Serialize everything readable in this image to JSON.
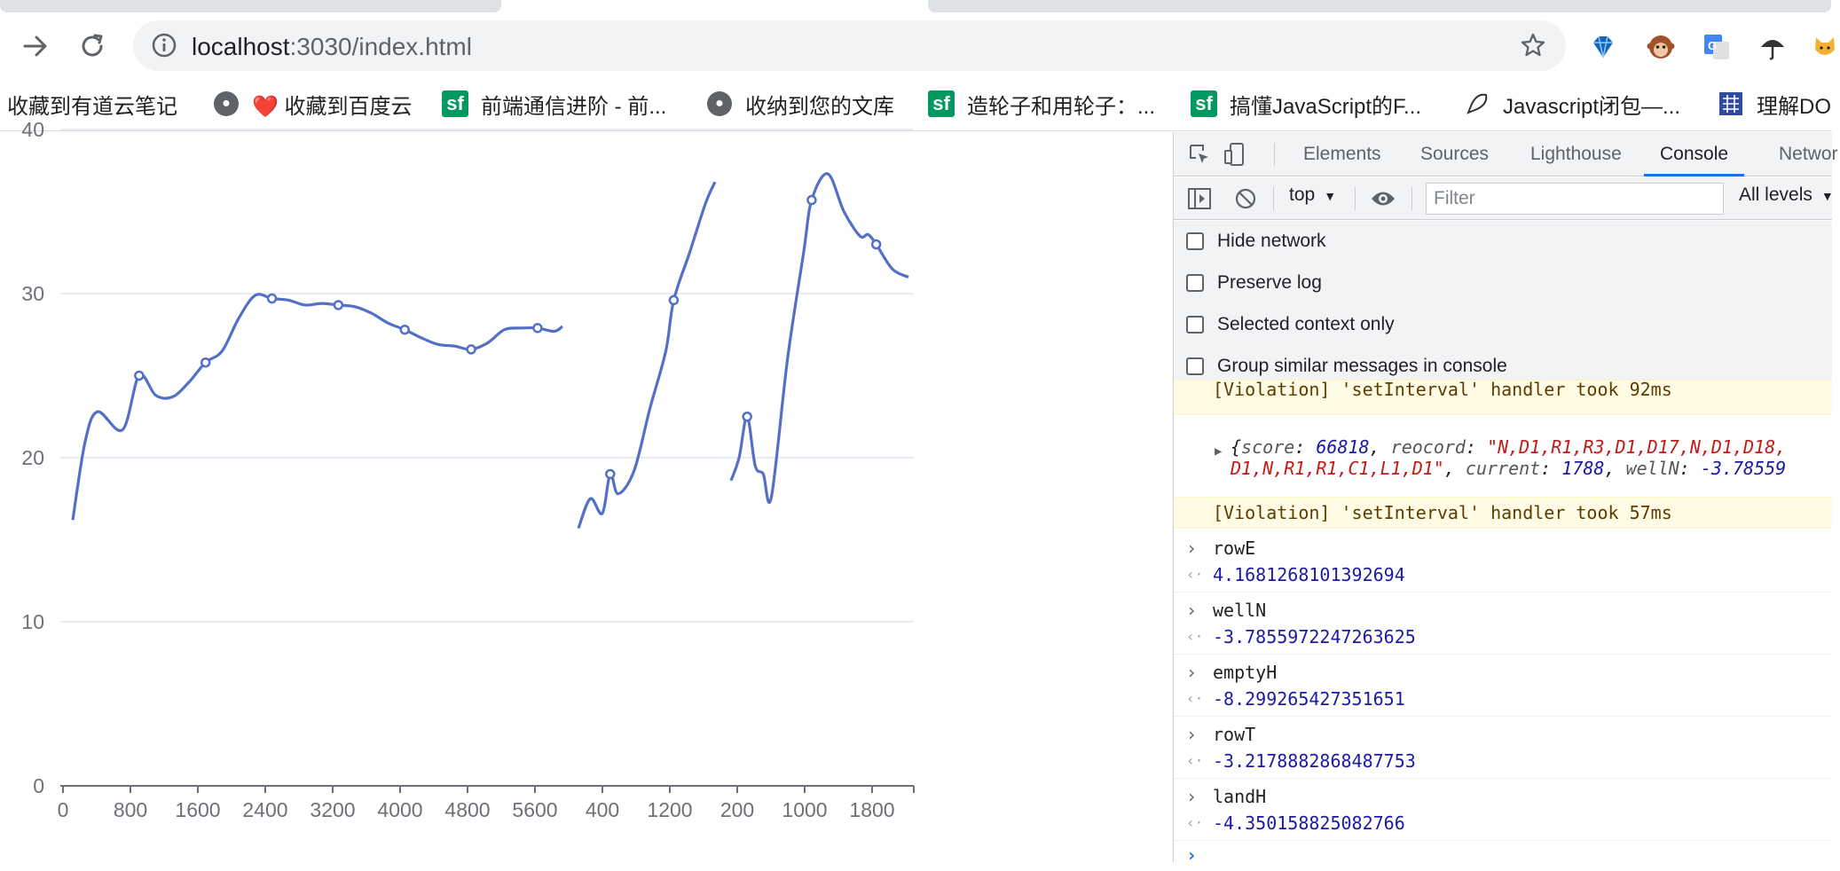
{
  "browser": {
    "url_host": "localhost",
    "url_rest": ":3030/index.html",
    "icons": {
      "forward": "arrow-right-icon",
      "reload": "reload-icon",
      "info": "info-icon",
      "bookmark": "star-icon"
    },
    "extensions": [
      "diamond-extension-icon",
      "monkey-extension-icon",
      "translate-extension-icon",
      "umbrella-extension-icon",
      "cat-extension-icon"
    ]
  },
  "bookmarks": [
    {
      "label": "收藏到有道云笔记",
      "icon": "none"
    },
    {
      "label": "❤️ 收藏到百度云",
      "icon": "globe-icon"
    },
    {
      "label": "前端通信进阶 - 前...",
      "icon": "sf-icon"
    },
    {
      "label": "收纳到您的文库",
      "icon": "globe-icon"
    },
    {
      "label": "造轮子和用轮子：...",
      "icon": "sf-icon"
    },
    {
      "label": "搞懂JavaScript的F...",
      "icon": "sf-icon"
    },
    {
      "label": "Javascript闭包—...",
      "icon": "pen-icon"
    },
    {
      "label": "理解DO",
      "icon": "grid-icon"
    }
  ],
  "chart_data": {
    "type": "line",
    "y_ticks": [
      "0",
      "10",
      "20",
      "30",
      "40"
    ],
    "x_ticks": [
      "0",
      "800",
      "1600",
      "2400",
      "3200",
      "4000",
      "4800",
      "5600",
      "400",
      "1200",
      "200",
      "1000",
      "1800"
    ],
    "ylim": [
      0,
      40
    ],
    "grid": true,
    "color": "#5470c6",
    "series": [
      {
        "points": [
          [
            0,
            16.2
          ],
          [
            150,
            21
          ],
          [
            300,
            22.8
          ],
          [
            600,
            21.7
          ],
          [
            800,
            25
          ],
          [
            1000,
            23.8
          ],
          [
            1200,
            23.7
          ],
          [
            1400,
            24.6
          ],
          [
            1600,
            25.8
          ],
          [
            1800,
            26.5
          ],
          [
            2000,
            28.5
          ],
          [
            2200,
            29.9
          ],
          [
            2400,
            29.7
          ],
          [
            2600,
            29.6
          ],
          [
            2800,
            29.3
          ],
          [
            3000,
            29.4
          ],
          [
            3200,
            29.3
          ],
          [
            3400,
            29.2
          ],
          [
            3600,
            28.8
          ],
          [
            3800,
            28.2
          ],
          [
            4000,
            27.8
          ],
          [
            4200,
            27.3
          ],
          [
            4400,
            26.9
          ],
          [
            4600,
            26.8
          ],
          [
            4800,
            26.6
          ],
          [
            5000,
            27.0
          ],
          [
            5200,
            27.8
          ],
          [
            5400,
            27.9
          ],
          [
            5600,
            27.9
          ],
          [
            5800,
            27.7
          ],
          [
            5900,
            28.0
          ]
        ],
        "markers": [
          [
            800,
            25
          ],
          [
            1600,
            25.8
          ],
          [
            2400,
            29.7
          ],
          [
            3200,
            29.3
          ],
          [
            4000,
            27.8
          ],
          [
            4800,
            26.6
          ],
          [
            5600,
            27.9
          ]
        ]
      },
      {
        "points": [
          [
            0,
            15.7
          ],
          [
            150,
            17.5
          ],
          [
            300,
            16.6
          ],
          [
            400,
            19
          ],
          [
            500,
            17.8
          ],
          [
            700,
            19.2
          ],
          [
            900,
            23
          ],
          [
            1100,
            26.5
          ],
          [
            1200,
            29.6
          ],
          [
            1400,
            32.5
          ],
          [
            1600,
            35.5
          ],
          [
            1720,
            36.8
          ]
        ],
        "markers": [
          [
            400,
            19
          ],
          [
            1200,
            29.6
          ]
        ]
      },
      {
        "points": [
          [
            0,
            18.6
          ],
          [
            100,
            20
          ],
          [
            200,
            22.5
          ],
          [
            300,
            19.5
          ],
          [
            400,
            19
          ],
          [
            500,
            17.6
          ],
          [
            700,
            26
          ],
          [
            900,
            32.5
          ],
          [
            1000,
            35.7
          ],
          [
            1200,
            37.3
          ],
          [
            1400,
            35
          ],
          [
            1600,
            33.5
          ],
          [
            1700,
            33.6
          ],
          [
            1800,
            33
          ],
          [
            2000,
            31.5
          ],
          [
            2200,
            31
          ]
        ],
        "markers": [
          [
            200,
            22.5
          ],
          [
            1000,
            35.7
          ],
          [
            1800,
            33
          ]
        ]
      }
    ]
  },
  "devtools": {
    "tabs": [
      "Elements",
      "Sources",
      "Lighthouse",
      "Console",
      "Networ"
    ],
    "active_tab": "Console",
    "context": "top",
    "filter_placeholder": "Filter",
    "levels": "All levels",
    "settings": [
      "Hide network",
      "Preserve log",
      "Selected context only",
      "Group similar messages in console"
    ],
    "console": {
      "violation_cut": "[Violation] 'setInterval' handler took 92ms",
      "object_line1_prefix": "{",
      "obj_score_key": "score",
      "obj_score_val": "66818",
      "obj_reocord_key": "reocord",
      "obj_reocord_val": "\"N,D1,R1,R3,D1,D17,N,D1,D18,",
      "obj_line2_str": "D1,N,R1,R1,C1,L1,D1\"",
      "obj_current_key": "current",
      "obj_current_val": "1788",
      "obj_welln_key": "wellN",
      "obj_welln_val": "-3.78559",
      "violation": "[Violation] 'setInterval' handler took 57ms",
      "entries": [
        {
          "expr": "rowE",
          "result": "4.1681268101392694"
        },
        {
          "expr": "wellN",
          "result": "-3.7855972247263625"
        },
        {
          "expr": "emptyH",
          "result": "-8.299265427351651"
        },
        {
          "expr": "rowT",
          "result": "-3.2178882868487753"
        },
        {
          "expr": "landH",
          "result": "-4.350158825082766"
        }
      ]
    }
  }
}
